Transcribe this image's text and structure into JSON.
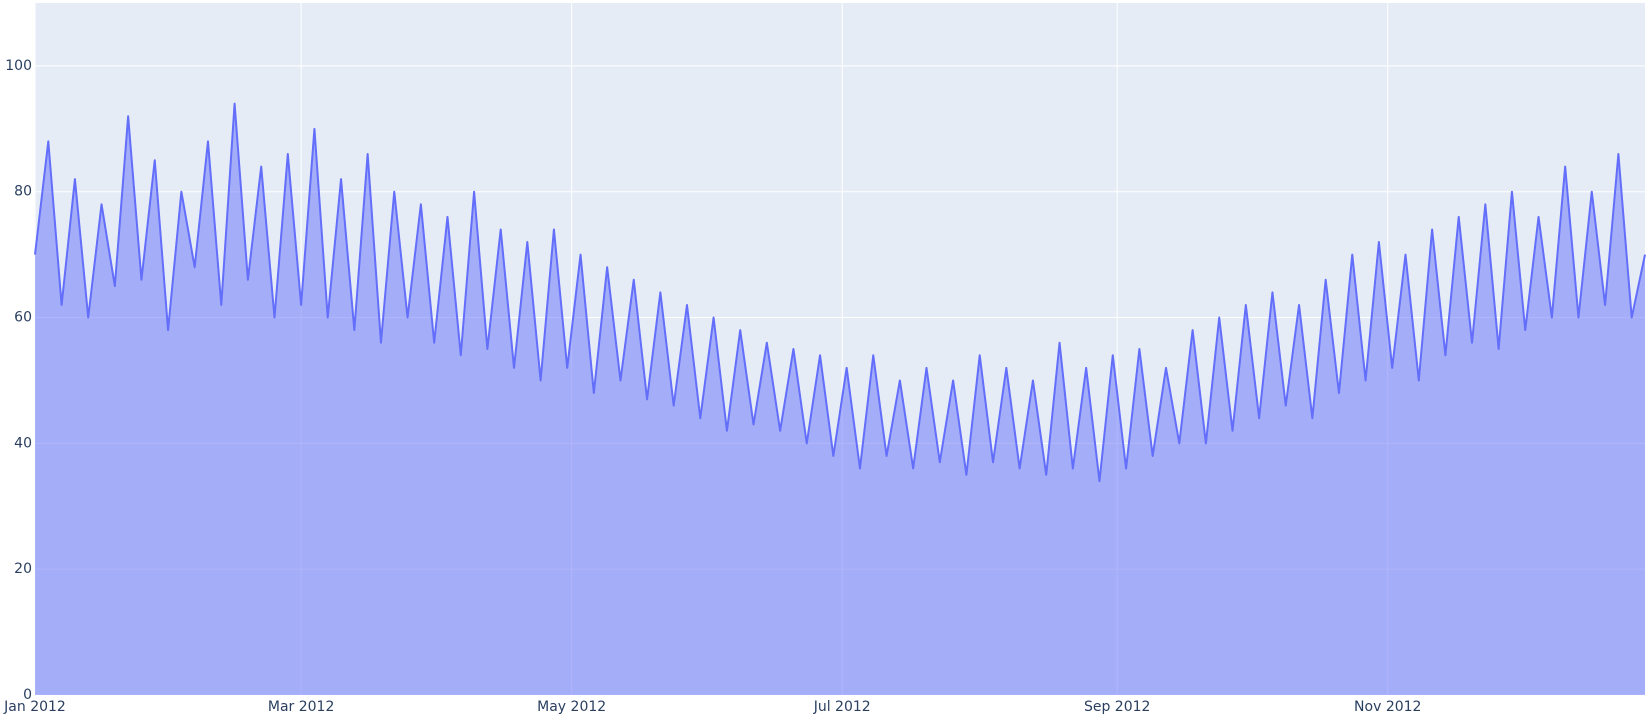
{
  "chart_data": {
    "type": "area",
    "color": "#636efa",
    "x": [
      0,
      3,
      6,
      9,
      12,
      15,
      18,
      21,
      24,
      27,
      30,
      33,
      36,
      39,
      42,
      45,
      48,
      51,
      54,
      57,
      60,
      63,
      66,
      69,
      72,
      75,
      78,
      81,
      84,
      87,
      90,
      93,
      96,
      99,
      102,
      105,
      108,
      111,
      114,
      117,
      120,
      123,
      126,
      129,
      132,
      135,
      138,
      141,
      144,
      147,
      150,
      153,
      156,
      159,
      162,
      165,
      168,
      171,
      174,
      177,
      180,
      183,
      186,
      189,
      192,
      195,
      198,
      201,
      204,
      207,
      210,
      213,
      216,
      219,
      222,
      225,
      228,
      231,
      234,
      237,
      240,
      243,
      246,
      249,
      252,
      255,
      258,
      261,
      264,
      267,
      270,
      273,
      276,
      279,
      282,
      285,
      288,
      291,
      294,
      297,
      300,
      303,
      306,
      309,
      312,
      315,
      318,
      321,
      324,
      327,
      330,
      333,
      336,
      339,
      342,
      345,
      348,
      351,
      354,
      357,
      360,
      363
    ],
    "values": [
      70,
      88,
      62,
      82,
      60,
      78,
      65,
      92,
      66,
      85,
      58,
      80,
      68,
      88,
      62,
      94,
      66,
      84,
      60,
      86,
      62,
      90,
      60,
      82,
      58,
      86,
      56,
      80,
      60,
      78,
      56,
      76,
      54,
      80,
      55,
      74,
      52,
      72,
      50,
      74,
      52,
      70,
      48,
      68,
      50,
      66,
      47,
      64,
      46,
      62,
      44,
      60,
      42,
      58,
      43,
      56,
      42,
      55,
      40,
      54,
      38,
      52,
      36,
      54,
      38,
      50,
      36,
      52,
      37,
      50,
      35,
      54,
      37,
      52,
      36,
      50,
      35,
      56,
      36,
      52,
      34,
      54,
      36,
      55,
      38,
      52,
      40,
      58,
      40,
      60,
      42,
      62,
      44,
      64,
      46,
      62,
      44,
      66,
      48,
      70,
      50,
      72,
      52,
      70,
      50,
      74,
      54,
      76,
      56,
      78,
      55,
      80,
      58,
      76,
      60,
      84,
      60,
      80,
      62,
      86,
      60,
      70
    ],
    "xlim": [
      0,
      363
    ],
    "xticks": [
      {
        "value": 0,
        "label": "Jan 2012"
      },
      {
        "value": 60,
        "label": "Mar 2012"
      },
      {
        "value": 121,
        "label": "May 2012"
      },
      {
        "value": 182,
        "label": "Jul 2012"
      },
      {
        "value": 244,
        "label": "Sep 2012"
      },
      {
        "value": 305,
        "label": "Nov 2012"
      }
    ],
    "ylim": [
      0,
      110
    ],
    "yticks": [
      0,
      20,
      40,
      60,
      80,
      100
    ],
    "grid": true
  }
}
